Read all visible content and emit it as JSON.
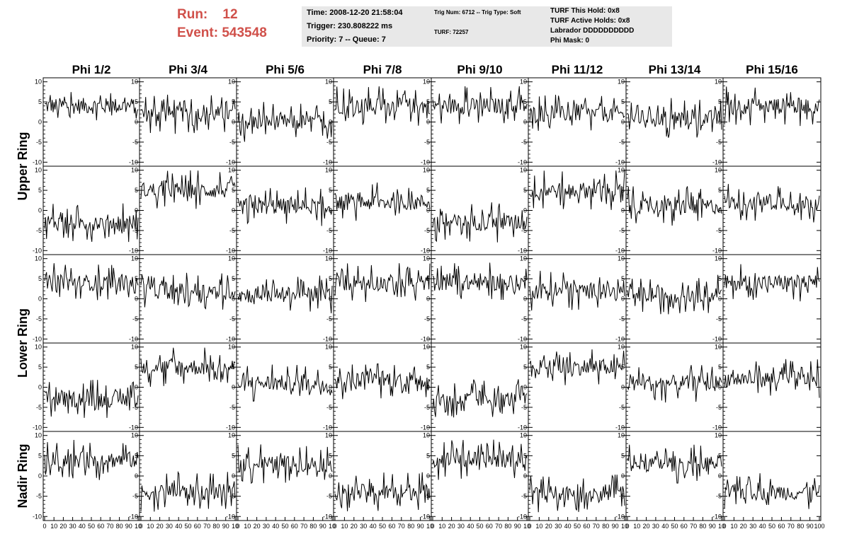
{
  "header": {
    "run_label": "Run:",
    "run_value": "12",
    "event_label": "Event:",
    "event_value": "543548"
  },
  "info_box_1": {
    "time": "Time: 2008-12-20 21:58:04",
    "trigger": "Trigger: 230.808222 ms",
    "priority": "Priority: 7 -- Queue: 7"
  },
  "info_box_2": {
    "trig": "Trig Num: 6712 -- Trig Type: Soft",
    "turf": "TURF: 72257"
  },
  "info_box_3": {
    "this_hold": "TURF This Hold: 0x8",
    "active_holds": "TURF Active Holds: 0x8",
    "labrador": "Labrador DDDDDDDDDD",
    "phi_mask": "Phi Mask: 0"
  },
  "chart_data": {
    "type": "line",
    "layout": "grid of 5 rows x 8 columns of sampled trace panels",
    "column_labels": [
      "Phi 1/2",
      "Phi 3/4",
      "Phi 5/6",
      "Phi 7/8",
      "Phi 9/10",
      "Phi 11/12",
      "Phi 13/14",
      "Phi 15/16"
    ],
    "ring_labels": [
      "Upper Ring",
      "Lower Ring",
      "Nadir Ring"
    ],
    "ring_label_rows": [
      [
        0,
        1
      ],
      [
        2,
        3
      ],
      [
        4,
        4
      ]
    ],
    "x_range": [
      0,
      100
    ],
    "y_range": [
      -11,
      11
    ],
    "x_ticks": [
      0,
      10,
      20,
      30,
      40,
      50,
      60,
      70,
      80,
      90,
      100
    ],
    "x_tick_labels": [
      "0",
      "10",
      "20",
      "30",
      "40",
      "50",
      "60",
      "70",
      "80",
      "90",
      "100"
    ],
    "x_tick_labels_last_column": [
      "0",
      "10",
      "20",
      "30",
      "40",
      "50",
      "60",
      "70",
      "80",
      "90",
      "100"
    ],
    "x_tick_labels_other_columns": [
      "0",
      "10",
      "20",
      "30",
      "40",
      "50",
      "60",
      "70",
      "80",
      "90",
      "10"
    ],
    "y_ticks": [
      10,
      5,
      0,
      -5,
      -10
    ],
    "y_tick_labels": [
      "10",
      "5",
      "0",
      "-5",
      "-10"
    ],
    "n_samples": 100,
    "trace_color": "#000000",
    "panel_baselines": [
      [
        4,
        2,
        0,
        4,
        4,
        2,
        1,
        4
      ],
      [
        -3,
        5,
        1,
        2,
        -3,
        5,
        1,
        2
      ],
      [
        4,
        2,
        1,
        4,
        4,
        2,
        1,
        4
      ],
      [
        -3,
        5,
        1,
        2,
        -3,
        5,
        1,
        2
      ],
      [
        4,
        -4,
        3,
        -4,
        4,
        -4,
        3,
        -4
      ]
    ]
  }
}
